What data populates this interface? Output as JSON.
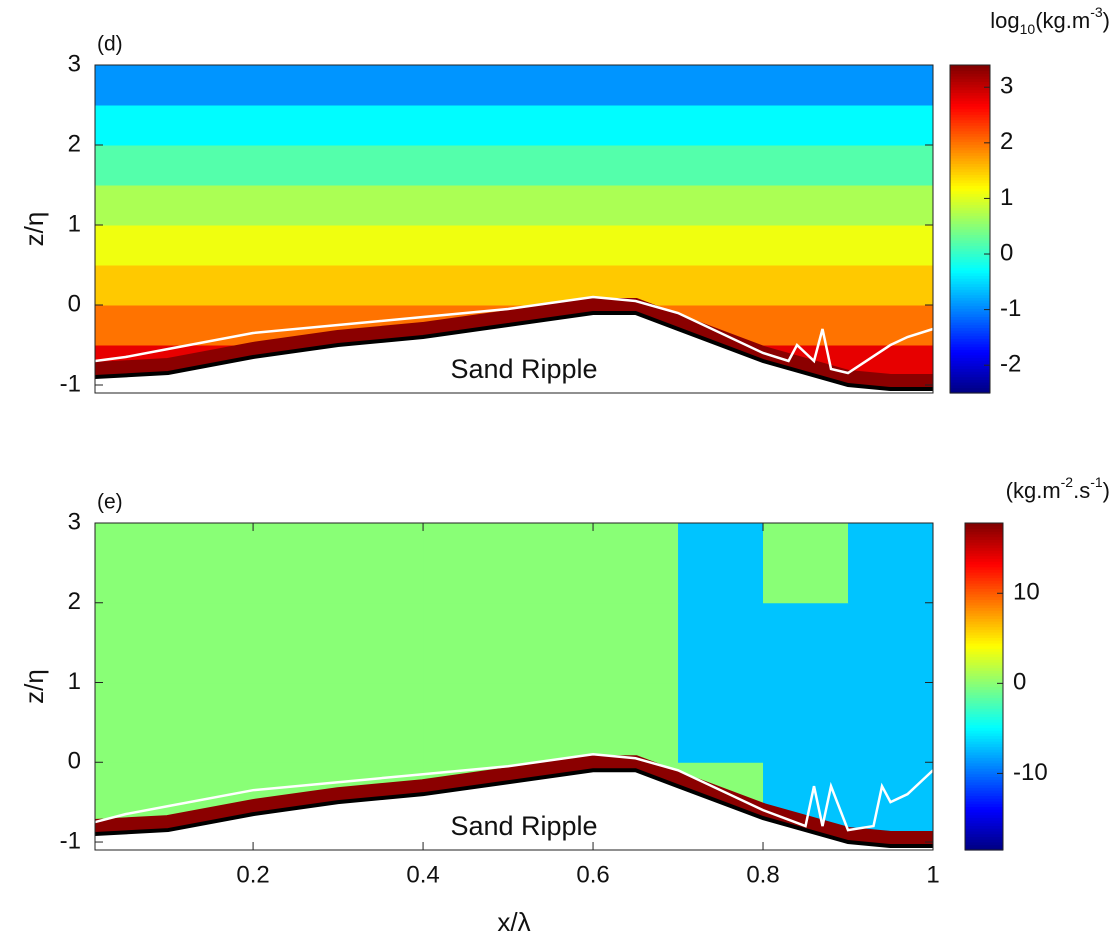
{
  "chart_data": [
    {
      "type": "heatmap",
      "panel_label": "(d)",
      "ylabel": "z/η",
      "colorbar_label": [
        "log",
        "10",
        "(kg.m",
        "-3",
        ")"
      ],
      "xlim": [
        0.014,
        1
      ],
      "ylim": [
        -1.1,
        3
      ],
      "yticks": [
        -1,
        0,
        1,
        2,
        3
      ],
      "clim": [
        -2.5,
        3.4
      ],
      "cticks": [
        -2,
        -1,
        0,
        1,
        2,
        3
      ],
      "x_edges": [
        0.014,
        1
      ],
      "z_edges": [
        -1.1,
        -0.5,
        0,
        0.5,
        1,
        1.5,
        2,
        2.5,
        3
      ],
      "values": [
        [
          2.8
        ],
        [
          2.0
        ],
        [
          1.5
        ],
        [
          1.1
        ],
        [
          0.7
        ],
        [
          0.2
        ],
        [
          -0.3
        ],
        [
          -0.9
        ]
      ],
      "bed": {
        "x": [
          0.014,
          0.1,
          0.2,
          0.3,
          0.4,
          0.5,
          0.6,
          0.65,
          0.7,
          0.8,
          0.9,
          0.95,
          1
        ],
        "z": [
          -0.9,
          -0.85,
          -0.65,
          -0.5,
          -0.4,
          -0.25,
          -0.1,
          -0.1,
          -0.3,
          -0.7,
          -1.0,
          -1.05,
          -1.05
        ]
      },
      "contour": {
        "x": [
          0.014,
          0.05,
          0.1,
          0.2,
          0.3,
          0.4,
          0.5,
          0.6,
          0.65,
          0.7,
          0.8,
          0.83,
          0.84,
          0.86,
          0.87,
          0.88,
          0.9,
          0.95,
          0.97,
          1
        ],
        "z": [
          -0.7,
          -0.65,
          -0.55,
          -0.35,
          -0.25,
          -0.15,
          -0.05,
          0.1,
          0.05,
          -0.1,
          -0.6,
          -0.7,
          -0.5,
          -0.7,
          -0.3,
          -0.8,
          -0.85,
          -0.5,
          -0.4,
          -0.3
        ]
      },
      "annotation": "Sand Ripple"
    },
    {
      "type": "heatmap",
      "panel_label": "(e)",
      "ylabel": "z/η",
      "xlabel": "x/λ",
      "colorbar_label": [
        "(kg.m",
        "-2",
        ".s",
        "-1",
        ")"
      ],
      "xlim": [
        0.014,
        1
      ],
      "ylim": [
        -1.1,
        3
      ],
      "yticks": [
        -1,
        0,
        1,
        2,
        3
      ],
      "xticks": [
        0.2,
        0.4,
        0.6,
        0.8,
        1
      ],
      "clim": [
        -18.5,
        17.8
      ],
      "cticks": [
        -10,
        0,
        10
      ],
      "x_edges": [
        0.014,
        0.2,
        0.4,
        0.6,
        0.7,
        0.8,
        0.9,
        1
      ],
      "z_edges": [
        -1.1,
        0,
        1,
        2,
        3
      ],
      "values": [
        [
          0,
          0,
          0,
          0,
          0,
          -7,
          -7
        ],
        [
          0,
          0,
          0,
          0,
          -7,
          -7,
          -7
        ],
        [
          0,
          0,
          0,
          0,
          -7,
          -7,
          -7
        ],
        [
          0,
          0,
          0,
          0,
          -7,
          0,
          -7
        ]
      ],
      "bed": {
        "x": [
          0.014,
          0.1,
          0.2,
          0.3,
          0.4,
          0.5,
          0.6,
          0.65,
          0.7,
          0.8,
          0.9,
          0.95,
          1
        ],
        "z": [
          -0.9,
          -0.85,
          -0.65,
          -0.5,
          -0.4,
          -0.25,
          -0.1,
          -0.1,
          -0.3,
          -0.7,
          -1.0,
          -1.05,
          -1.05
        ]
      },
      "contour": {
        "x": [
          0.014,
          0.05,
          0.1,
          0.2,
          0.3,
          0.4,
          0.5,
          0.6,
          0.65,
          0.7,
          0.8,
          0.85,
          0.86,
          0.87,
          0.88,
          0.9,
          0.93,
          0.94,
          0.95,
          0.97,
          1
        ],
        "z": [
          -0.75,
          -0.65,
          -0.55,
          -0.35,
          -0.25,
          -0.15,
          -0.05,
          0.1,
          0.05,
          -0.1,
          -0.6,
          -0.8,
          -0.3,
          -0.8,
          -0.3,
          -0.85,
          -0.8,
          -0.3,
          -0.5,
          -0.4,
          -0.1
        ]
      },
      "annotation": "Sand Ripple"
    }
  ]
}
